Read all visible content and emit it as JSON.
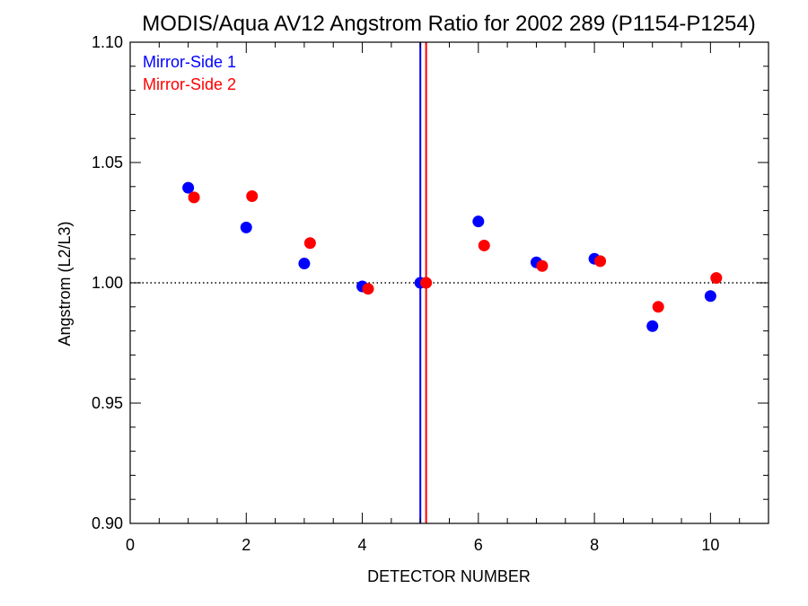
{
  "chart_data": {
    "type": "scatter",
    "title": "MODIS/Aqua AV12 Angstrom Ratio for 2002 289 (P1154-P1254)",
    "xlabel": "DETECTOR NUMBER",
    "ylabel": "Angstrom (L2/L3)",
    "xlim": [
      0,
      11
    ],
    "ylim": [
      0.9,
      1.1
    ],
    "x_ticks": [
      0,
      2,
      4,
      6,
      8,
      10
    ],
    "x_tick_labels": [
      "0",
      "2",
      "4",
      "6",
      "8",
      "10"
    ],
    "y_ticks": [
      0.9,
      0.95,
      1.0,
      1.05,
      1.1
    ],
    "y_tick_labels": [
      "0.90",
      "0.95",
      "1.00",
      "1.05",
      "1.10"
    ],
    "reference_line_y": 1.0,
    "vertical_lines": [
      {
        "x": 5.0,
        "color": "#0000ff"
      },
      {
        "x": 5.1,
        "color": "#ff0000"
      }
    ],
    "legend_position": "top-left",
    "grid": false,
    "series": [
      {
        "name": "Mirror-Side 1",
        "color": "#0000ff",
        "x": [
          1,
          2,
          3,
          4,
          5,
          6,
          7,
          8,
          9,
          10
        ],
        "y": [
          1.0395,
          1.023,
          1.008,
          0.9985,
          1.0,
          1.0255,
          1.0085,
          1.01,
          0.982,
          0.9945
        ]
      },
      {
        "name": "Mirror-Side 2",
        "color": "#ff0000",
        "x": [
          1.1,
          2.1,
          3.1,
          4.1,
          5.1,
          6.1,
          7.1,
          8.1,
          9.1,
          10.1
        ],
        "y": [
          1.0355,
          1.036,
          1.0165,
          0.9975,
          1.0,
          1.0155,
          1.007,
          1.009,
          0.99,
          1.002
        ]
      }
    ]
  }
}
